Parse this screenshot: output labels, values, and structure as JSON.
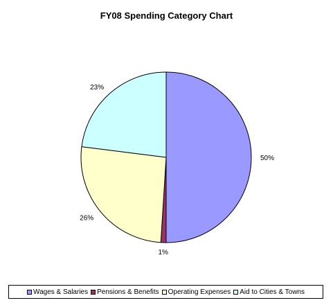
{
  "chart_data": {
    "type": "pie",
    "title": "FY08 Spending Category Chart",
    "categories": [
      "Wages & Salaries",
      "Pensions & Benefits",
      "Operating Expenses",
      "Aid to Cities & Towns"
    ],
    "values": [
      50,
      1,
      26,
      23
    ],
    "labels": [
      "50%",
      "1%",
      "26%",
      "23%"
    ],
    "colors": [
      "#9999ff",
      "#993366",
      "#ffffcc",
      "#ccffff"
    ],
    "legend_position": "bottom"
  }
}
